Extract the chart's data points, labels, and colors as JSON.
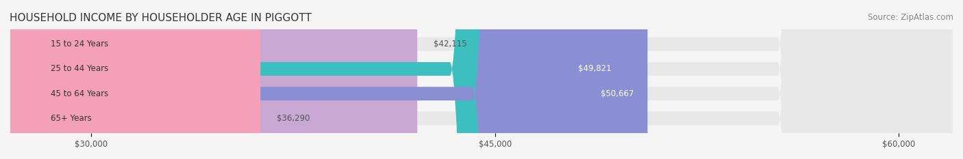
{
  "title": "HOUSEHOLD INCOME BY HOUSEHOLDER AGE IN PIGGOTT",
  "source": "Source: ZipAtlas.com",
  "categories": [
    "15 to 24 Years",
    "25 to 44 Years",
    "45 to 64 Years",
    "65+ Years"
  ],
  "values": [
    42115,
    49821,
    50667,
    36290
  ],
  "labels": [
    "$42,115",
    "$49,821",
    "$50,667",
    "$36,290"
  ],
  "bar_colors": [
    "#c9a8d4",
    "#3dbfbf",
    "#8a8fd4",
    "#f4a0b8"
  ],
  "label_colors": [
    "#555555",
    "#ffffff",
    "#ffffff",
    "#555555"
  ],
  "xlim_min": 27000,
  "xlim_max": 62000,
  "xticks": [
    30000,
    45000,
    60000
  ],
  "xtick_labels": [
    "$30,000",
    "$45,000",
    "$60,000"
  ],
  "bar_height": 0.55,
  "background_color": "#f5f5f5",
  "bar_bg_color": "#e8e8e8",
  "title_fontsize": 11,
  "source_fontsize": 8.5,
  "label_fontsize": 8.5,
  "tick_fontsize": 8.5,
  "category_fontsize": 8.5
}
